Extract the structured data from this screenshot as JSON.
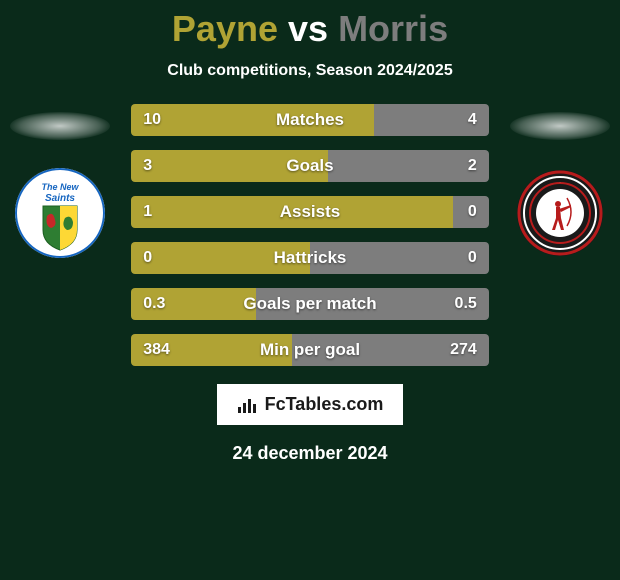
{
  "background_color": "#0a2a1a",
  "header": {
    "player1": "Payne",
    "vs": "vs",
    "player2": "Morris",
    "player1_color": "#b0a334",
    "vs_color": "#ffffff",
    "player2_color": "#7d7d7d",
    "subtitle": "Club competitions, Season 2024/2025"
  },
  "crests": {
    "left": {
      "name": "the-new-saints-crest",
      "bg": "#ffffff",
      "ring": "#1565c0",
      "text": "The New Saints",
      "text_color": "#1565c0"
    },
    "right": {
      "name": "connahs-quay-crest",
      "bg": "#1a1a1a",
      "ring1": "#b71c1c",
      "ring2": "#ffffff",
      "inner": "#b71c1c"
    }
  },
  "stats": {
    "left_color": "#b0a334",
    "right_color": "#7d7d7d",
    "rows": [
      {
        "label": "Matches",
        "left_val": "10",
        "right_val": "4",
        "left_pct": 68,
        "right_pct": 32
      },
      {
        "label": "Goals",
        "left_val": "3",
        "right_val": "2",
        "left_pct": 55,
        "right_pct": 45
      },
      {
        "label": "Assists",
        "left_val": "1",
        "right_val": "0",
        "left_pct": 90,
        "right_pct": 10
      },
      {
        "label": "Hattricks",
        "left_val": "0",
        "right_val": "0",
        "left_pct": 50,
        "right_pct": 50
      },
      {
        "label": "Goals per match",
        "left_val": "0.3",
        "right_val": "0.5",
        "left_pct": 35,
        "right_pct": 65
      },
      {
        "label": "Min per goal",
        "left_val": "384",
        "right_val": "274",
        "left_pct": 45,
        "right_pct": 55
      }
    ]
  },
  "footer": {
    "site": "FcTables.com",
    "date": "24 december 2024"
  }
}
